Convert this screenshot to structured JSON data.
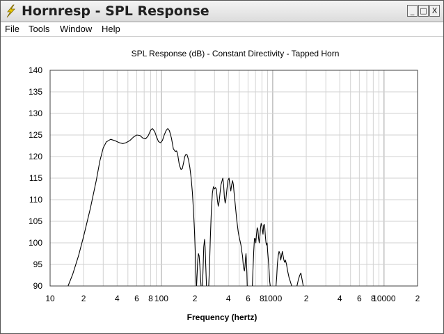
{
  "window": {
    "title": "Hornresp - SPL Response",
    "icon": "lightning-icon",
    "controls": {
      "minimize": "_",
      "maximize": "□",
      "close": "X"
    }
  },
  "menu": {
    "items": [
      "File",
      "Tools",
      "Window",
      "Help"
    ]
  },
  "chart_data": {
    "type": "line",
    "title": "SPL Response (dB) - Constant Directivity - Tapped Horn",
    "xlabel": "Frequency (hertz)",
    "ylabel": "",
    "xscale": "log",
    "xlim": [
      10,
      20000
    ],
    "ylim": [
      90,
      140
    ],
    "grid": true,
    "line_color": "#000000",
    "yticks": [
      140,
      135,
      130,
      125,
      120,
      115,
      110,
      105,
      100,
      95,
      90
    ],
    "xticks": [
      {
        "value": 10,
        "label": "10"
      },
      {
        "value": 20,
        "label": "2"
      },
      {
        "value": 40,
        "label": "4"
      },
      {
        "value": 60,
        "label": "6"
      },
      {
        "value": 80,
        "label": "8"
      },
      {
        "value": 100,
        "label": "100"
      },
      {
        "value": 200,
        "label": "2"
      },
      {
        "value": 400,
        "label": "4"
      },
      {
        "value": 600,
        "label": "6"
      },
      {
        "value": 800,
        "label": "8"
      },
      {
        "value": 1000,
        "label": "1000"
      },
      {
        "value": 2000,
        "label": "2"
      },
      {
        "value": 4000,
        "label": "4"
      },
      {
        "value": 6000,
        "label": "6"
      },
      {
        "value": 8000,
        "label": "8"
      },
      {
        "value": 10000,
        "label": "10000"
      },
      {
        "value": 20000,
        "label": "2"
      }
    ],
    "series": [
      {
        "segments": [
          [
            [
              14.5,
              90
            ],
            [
              16,
              92.8
            ],
            [
              18,
              97
            ],
            [
              20,
              101.5
            ],
            [
              23,
              108
            ],
            [
              26,
              114.5
            ],
            [
              28,
              119
            ],
            [
              30,
              122
            ],
            [
              32,
              123.4
            ],
            [
              35,
              124
            ],
            [
              38,
              123.7
            ],
            [
              42,
              123.2
            ],
            [
              45,
              123
            ],
            [
              48,
              123.2
            ],
            [
              52,
              123.7
            ],
            [
              56,
              124.5
            ],
            [
              60,
              125
            ],
            [
              64,
              124.9
            ],
            [
              68,
              124.3
            ],
            [
              72,
              124.1
            ],
            [
              76,
              124.8
            ],
            [
              80,
              126.1
            ],
            [
              83,
              126.5
            ],
            [
              87,
              125.8
            ],
            [
              90,
              124.7
            ],
            [
              94,
              123.5
            ],
            [
              98,
              123.2
            ],
            [
              102,
              123.7
            ],
            [
              106,
              125
            ],
            [
              110,
              126
            ],
            [
              114,
              126.5
            ],
            [
              118,
              126
            ],
            [
              123,
              124.3
            ],
            [
              128,
              121.8
            ],
            [
              133,
              121.2
            ],
            [
              137,
              121.3
            ],
            [
              140,
              120.5
            ],
            [
              145,
              118
            ],
            [
              150,
              117
            ],
            [
              154,
              117.2
            ],
            [
              158,
              118.5
            ],
            [
              162,
              120
            ],
            [
              166,
              120.5
            ],
            [
              170,
              120.4
            ],
            [
              175,
              119.3
            ],
            [
              180,
              117.5
            ],
            [
              185,
              115
            ],
            [
              190,
              111.5
            ],
            [
              194,
              107.5
            ],
            [
              198,
              103
            ],
            [
              202,
              97
            ],
            [
              205,
              91
            ],
            [
              206,
              90
            ]
          ],
          [
            [
              207,
              90
            ],
            [
              209,
              92.5
            ],
            [
              212,
              96
            ],
            [
              215,
              97.5
            ],
            [
              218,
              97
            ],
            [
              221,
              95
            ],
            [
              224,
              92.2
            ],
            [
              227,
              90
            ]
          ],
          [
            [
              233,
              90
            ],
            [
              236,
              93
            ],
            [
              240,
              99
            ],
            [
              244,
              100.8
            ],
            [
              247,
              99
            ],
            [
              250,
              95
            ],
            [
              254,
              90
            ]
          ],
          [
            [
              266,
              90
            ],
            [
              270,
              94
            ],
            [
              275,
              101
            ],
            [
              281,
              107.5
            ],
            [
              287,
              111.5
            ],
            [
              293,
              113
            ],
            [
              300,
              112.5
            ],
            [
              306,
              112.8
            ],
            [
              312,
              112.4
            ],
            [
              318,
              110
            ],
            [
              324,
              108.5
            ],
            [
              330,
              109.5
            ],
            [
              336,
              111.5
            ],
            [
              343,
              113.5
            ],
            [
              350,
              114.3
            ],
            [
              356,
              115
            ],
            [
              362,
              113.5
            ],
            [
              368,
              110.5
            ],
            [
              374,
              109.2
            ],
            [
              380,
              110.2
            ],
            [
              388,
              112.5
            ],
            [
              396,
              114.5
            ],
            [
              405,
              115
            ],
            [
              412,
              113.5
            ],
            [
              420,
              112
            ],
            [
              428,
              113.5
            ],
            [
              436,
              114.4
            ],
            [
              443,
              113.5
            ],
            [
              450,
              111.5
            ],
            [
              458,
              109.5
            ],
            [
              466,
              107.5
            ],
            [
              474,
              105.5
            ],
            [
              482,
              104
            ],
            [
              490,
              102.5
            ],
            [
              498,
              101.5
            ],
            [
              508,
              100.5
            ],
            [
              518,
              99.5
            ],
            [
              527,
              98
            ],
            [
              535,
              97
            ],
            [
              543,
              95
            ],
            [
              550,
              94
            ],
            [
              557,
              93.5
            ],
            [
              563,
              94.5
            ],
            [
              570,
              96.5
            ],
            [
              575,
              97.5
            ],
            [
              580,
              96
            ],
            [
              586,
              93
            ],
            [
              590,
              90
            ]
          ],
          [
            [
              656,
              90
            ],
            [
              665,
              94
            ],
            [
              675,
              98
            ],
            [
              685,
              101
            ],
            [
              695,
              101
            ],
            [
              705,
              100
            ],
            [
              715,
              102
            ],
            [
              725,
              103.5
            ],
            [
              736,
              103
            ],
            [
              747,
              101
            ],
            [
              757,
              100
            ],
            [
              767,
              101.5
            ],
            [
              777,
              103.5
            ],
            [
              787,
              104.5
            ],
            [
              798,
              104
            ],
            [
              808,
              103
            ],
            [
              818,
              102
            ],
            [
              828,
              104
            ],
            [
              838,
              104.3
            ],
            [
              849,
              103.5
            ],
            [
              859,
              101.5
            ],
            [
              870,
              100
            ],
            [
              880,
              99.5
            ],
            [
              890,
              100
            ],
            [
              900,
              98
            ],
            [
              910,
              96.5
            ],
            [
              920,
              95
            ],
            [
              930,
              93
            ],
            [
              940,
              91
            ],
            [
              950,
              90
            ]
          ],
          [
            [
              1070,
              90
            ],
            [
              1085,
              92
            ],
            [
              1100,
              95
            ],
            [
              1120,
              97
            ],
            [
              1140,
              98
            ],
            [
              1160,
              97.5
            ],
            [
              1180,
              96
            ],
            [
              1200,
              97
            ],
            [
              1220,
              98
            ],
            [
              1240,
              97
            ],
            [
              1260,
              96
            ],
            [
              1280,
              95.5
            ],
            [
              1300,
              96
            ],
            [
              1330,
              95
            ],
            [
              1360,
              93.5
            ],
            [
              1400,
              92
            ],
            [
              1440,
              91
            ],
            [
              1480,
              90
            ]
          ],
          [
            [
              1650,
              90
            ],
            [
              1700,
              91.5
            ],
            [
              1750,
              92.5
            ],
            [
              1790,
              93
            ],
            [
              1820,
              92
            ],
            [
              1850,
              91
            ],
            [
              1880,
              90
            ]
          ]
        ]
      }
    ]
  }
}
